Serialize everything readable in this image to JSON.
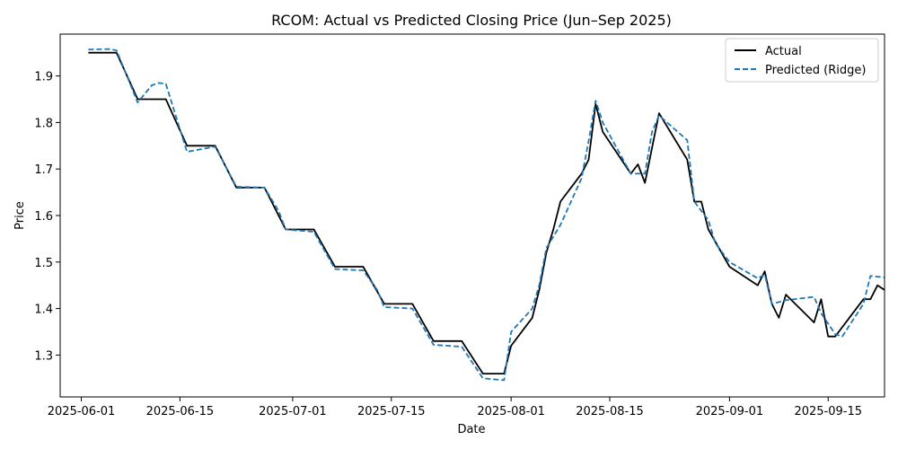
{
  "chart_data": {
    "type": "line",
    "title": "RCOM: Actual vs Predicted Closing Price (Jun–Sep 2025)",
    "xlabel": "Date",
    "ylabel": "Price",
    "xlim": [
      "2025-05-29",
      "2025-09-23"
    ],
    "ylim": [
      1.21,
      1.99
    ],
    "x_ticks": [
      "2025-06-01",
      "2025-06-15",
      "2025-07-01",
      "2025-07-15",
      "2025-08-01",
      "2025-08-15",
      "2025-09-01",
      "2025-09-15"
    ],
    "y_ticks": [
      1.3,
      1.4,
      1.5,
      1.6,
      1.7,
      1.8,
      1.9
    ],
    "grid": false,
    "legend_position": "top-right",
    "series": [
      {
        "name": "Actual",
        "color": "#000000",
        "style": "solid",
        "points": [
          [
            "2025-06-02",
            1.95
          ],
          [
            "2025-06-06",
            1.95
          ],
          [
            "2025-06-09",
            1.85
          ],
          [
            "2025-06-13",
            1.85
          ],
          [
            "2025-06-16",
            1.75
          ],
          [
            "2025-06-20",
            1.75
          ],
          [
            "2025-06-23",
            1.66
          ],
          [
            "2025-06-27",
            1.66
          ],
          [
            "2025-06-30",
            1.57
          ],
          [
            "2025-07-04",
            1.57
          ],
          [
            "2025-07-07",
            1.49
          ],
          [
            "2025-07-11",
            1.49
          ],
          [
            "2025-07-14",
            1.41
          ],
          [
            "2025-07-18",
            1.41
          ],
          [
            "2025-07-21",
            1.33
          ],
          [
            "2025-07-25",
            1.33
          ],
          [
            "2025-07-28",
            1.26
          ],
          [
            "2025-07-31",
            1.26
          ],
          [
            "2025-08-01",
            1.32
          ],
          [
            "2025-08-04",
            1.38
          ],
          [
            "2025-08-05",
            1.44
          ],
          [
            "2025-08-06",
            1.52
          ],
          [
            "2025-08-07",
            1.57
          ],
          [
            "2025-08-08",
            1.63
          ],
          [
            "2025-08-11",
            1.69
          ],
          [
            "2025-08-12",
            1.72
          ],
          [
            "2025-08-13",
            1.84
          ],
          [
            "2025-08-14",
            1.78
          ],
          [
            "2025-08-18",
            1.69
          ],
          [
            "2025-08-19",
            1.71
          ],
          [
            "2025-08-20",
            1.67
          ],
          [
            "2025-08-22",
            1.82
          ],
          [
            "2025-08-26",
            1.72
          ],
          [
            "2025-08-27",
            1.63
          ],
          [
            "2025-08-28",
            1.63
          ],
          [
            "2025-08-29",
            1.57
          ],
          [
            "2025-09-01",
            1.49
          ],
          [
            "2025-09-01",
            1.49
          ],
          [
            "2025-09-05",
            1.45
          ],
          [
            "2025-09-06",
            1.48
          ],
          [
            "2025-09-07",
            1.41
          ],
          [
            "2025-09-08",
            1.38
          ],
          [
            "2025-09-09",
            1.43
          ],
          [
            "2025-09-13",
            1.37
          ],
          [
            "2025-09-14",
            1.42
          ],
          [
            "2025-09-15",
            1.34
          ],
          [
            "2025-09-16",
            1.34
          ],
          [
            "2025-09-20",
            1.42
          ],
          [
            "2025-09-21",
            1.42
          ],
          [
            "2025-09-22",
            1.45
          ],
          [
            "2025-09-23",
            1.44
          ]
        ]
      },
      {
        "name": "Predicted (Ridge)",
        "color": "#1f77b4",
        "style": "dashed",
        "points": [
          [
            "2025-06-02",
            1.957
          ],
          [
            "2025-06-05",
            1.958
          ],
          [
            "2025-06-06",
            1.955
          ],
          [
            "2025-06-09",
            1.843
          ],
          [
            "2025-06-11",
            1.88
          ],
          [
            "2025-06-12",
            1.885
          ],
          [
            "2025-06-13",
            1.883
          ],
          [
            "2025-06-16",
            1.737
          ],
          [
            "2025-06-20",
            1.748
          ],
          [
            "2025-06-23",
            1.662
          ],
          [
            "2025-06-27",
            1.66
          ],
          [
            "2025-06-29",
            1.61
          ],
          [
            "2025-06-30",
            1.57
          ],
          [
            "2025-07-04",
            1.565
          ],
          [
            "2025-07-07",
            1.485
          ],
          [
            "2025-07-11",
            1.482
          ],
          [
            "2025-07-13",
            1.44
          ],
          [
            "2025-07-14",
            1.403
          ],
          [
            "2025-07-18",
            1.4
          ],
          [
            "2025-07-21",
            1.322
          ],
          [
            "2025-07-25",
            1.318
          ],
          [
            "2025-07-28",
            1.25
          ],
          [
            "2025-07-31",
            1.246
          ],
          [
            "2025-08-01",
            1.35
          ],
          [
            "2025-08-04",
            1.4
          ],
          [
            "2025-08-05",
            1.45
          ],
          [
            "2025-08-06",
            1.53
          ],
          [
            "2025-08-08",
            1.58
          ],
          [
            "2025-08-11",
            1.68
          ],
          [
            "2025-08-12",
            1.76
          ],
          [
            "2025-08-13",
            1.847
          ],
          [
            "2025-08-14",
            1.8
          ],
          [
            "2025-08-18",
            1.69
          ],
          [
            "2025-08-20",
            1.69
          ],
          [
            "2025-08-21",
            1.78
          ],
          [
            "2025-08-22",
            1.815
          ],
          [
            "2025-08-26",
            1.762
          ],
          [
            "2025-08-27",
            1.63
          ],
          [
            "2025-08-29",
            1.59
          ],
          [
            "2025-08-30",
            1.54
          ],
          [
            "2025-09-01",
            1.5
          ],
          [
            "2025-09-05",
            1.465
          ],
          [
            "2025-09-06",
            1.473
          ],
          [
            "2025-09-07",
            1.41
          ],
          [
            "2025-09-09",
            1.418
          ],
          [
            "2025-09-13",
            1.425
          ],
          [
            "2025-09-14",
            1.39
          ],
          [
            "2025-09-16",
            1.345
          ],
          [
            "2025-09-17",
            1.34
          ],
          [
            "2025-09-20",
            1.41
          ],
          [
            "2025-09-21",
            1.47
          ],
          [
            "2025-09-23",
            1.467
          ]
        ]
      }
    ]
  }
}
